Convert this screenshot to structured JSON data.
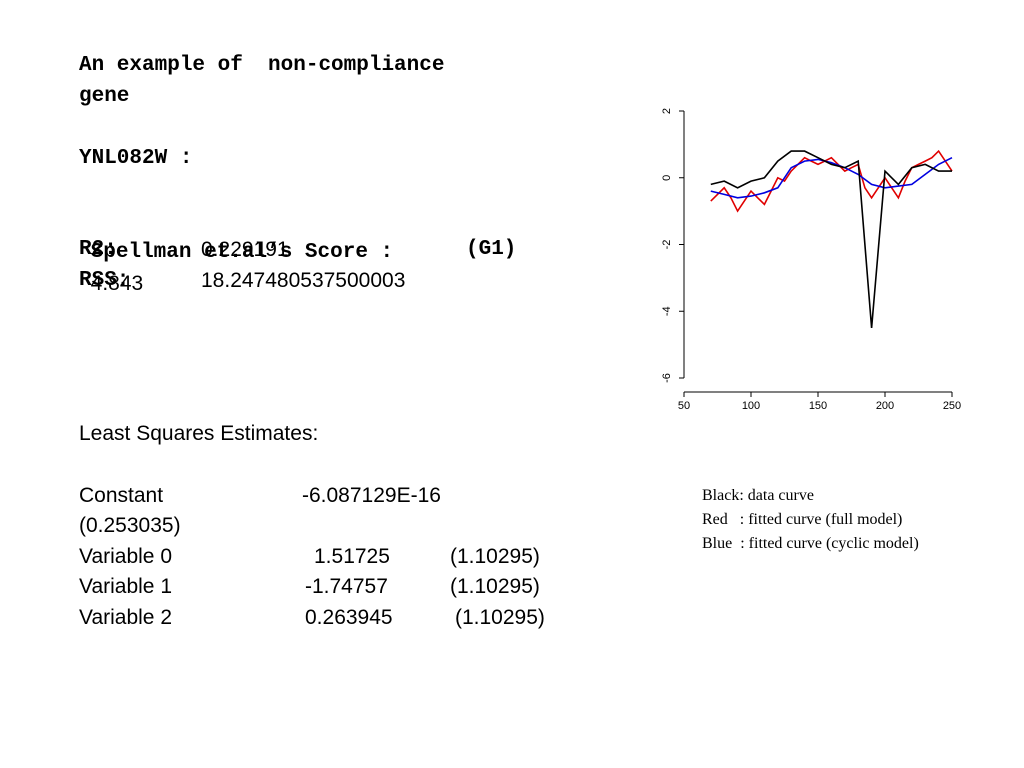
{
  "heading": {
    "line1": "An example of  non-compliance",
    "line2": "gene",
    "gene_id": "YNL082W :",
    "score_label": "Spellman et.al’s Score :",
    "score_value": "4.843",
    "r2_label": "R2:",
    "r2_value": "0.229191",
    "phase": "(G1)",
    "rss_label": "RSS:",
    "rss_value": "18.247480537500003"
  },
  "estimates": {
    "title": "Least Squares Estimates:",
    "rows": [
      {
        "name": "Constant",
        "value": "-6.087129E-16",
        "se": "(0.253035)"
      },
      {
        "name": "Variable 0",
        "value": "1.51725",
        "se": "(1.10295)"
      },
      {
        "name": "Variable 1",
        "value": "-1.74757",
        "se": "(1.10295)"
      },
      {
        "name": "Variable 2",
        "value": "0.263945",
        "se": "(1.10295)"
      }
    ]
  },
  "legend": {
    "black": "Black: data curve",
    "red": "Red   : fitted curve (full model)",
    "blue": "Blue  : fitted curve (cyclic model)"
  },
  "chart_data": {
    "type": "line",
    "xlim": [
      50,
      250
    ],
    "ylim": [
      -6,
      2
    ],
    "x_ticks": [
      "50",
      "100",
      "150",
      "200",
      "250"
    ],
    "y_ticks": [
      "2",
      "0",
      "-2",
      "-4",
      "-6"
    ],
    "grid": false,
    "series": [
      {
        "color": "#000000",
        "x": [
          70,
          80,
          90,
          100,
          110,
          120,
          130,
          140,
          150,
          160,
          170,
          180,
          190,
          200,
          210,
          220,
          230,
          240,
          250
        ],
        "y": [
          -0.2,
          -0.1,
          -0.3,
          -0.1,
          0.0,
          0.5,
          0.8,
          0.8,
          0.6,
          0.4,
          0.3,
          0.5,
          -4.5,
          0.2,
          -0.2,
          0.3,
          0.4,
          0.2,
          0.2
        ]
      },
      {
        "color": "#e00000",
        "x": [
          70,
          75,
          80,
          85,
          90,
          95,
          100,
          105,
          110,
          115,
          120,
          125,
          130,
          135,
          140,
          145,
          150,
          155,
          160,
          165,
          170,
          175,
          180,
          185,
          190,
          195,
          200,
          205,
          210,
          215,
          220,
          225,
          230,
          235,
          240,
          245,
          250
        ],
        "y": [
          -0.7,
          -0.5,
          -0.3,
          -0.6,
          -1.0,
          -0.7,
          -0.4,
          -0.6,
          -0.8,
          -0.4,
          0.0,
          -0.1,
          0.2,
          0.4,
          0.6,
          0.5,
          0.4,
          0.5,
          0.6,
          0.4,
          0.2,
          0.3,
          0.4,
          -0.3,
          -0.6,
          -0.3,
          0.0,
          -0.3,
          -0.6,
          -0.1,
          0.3,
          0.4,
          0.5,
          0.6,
          0.8,
          0.5,
          0.2
        ]
      },
      {
        "color": "#0000e0",
        "x": [
          70,
          80,
          90,
          100,
          110,
          120,
          130,
          140,
          150,
          160,
          170,
          180,
          190,
          200,
          210,
          220,
          230,
          240,
          250
        ],
        "y": [
          -0.4,
          -0.5,
          -0.6,
          -0.55,
          -0.45,
          -0.3,
          0.3,
          0.5,
          0.55,
          0.45,
          0.3,
          0.1,
          -0.2,
          -0.3,
          -0.25,
          -0.2,
          0.1,
          0.4,
          0.6
        ]
      }
    ]
  }
}
